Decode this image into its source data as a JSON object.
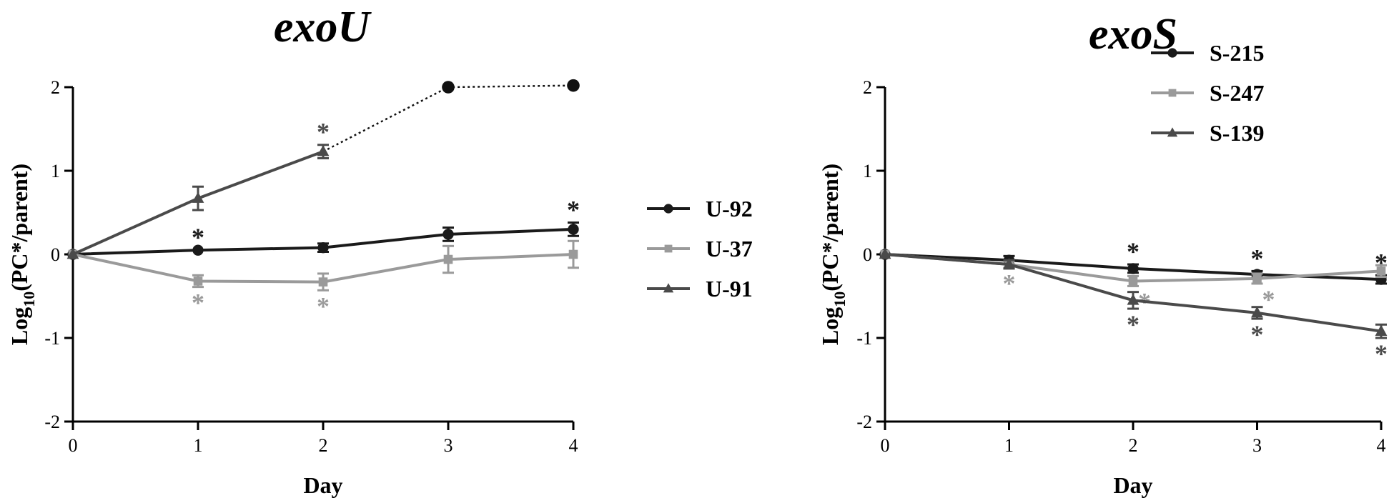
{
  "chart_data": [
    {
      "type": "line",
      "title": "exoU",
      "xlabel": "Day",
      "ylabel_base": "Log",
      "ylabel_sub": "10",
      "ylabel_rest": "(PC*/parent)",
      "x": [
        0,
        1,
        2,
        3,
        4
      ],
      "xlim": [
        0,
        4
      ],
      "ylim": [
        -2,
        2
      ],
      "xticks": [
        "0",
        "1",
        "2",
        "3",
        "4"
      ],
      "yticks": [
        "-2",
        "-1",
        "0",
        "1",
        "2"
      ],
      "legend_position": "right",
      "series": [
        {
          "name": "U-92",
          "color": "#1a1a1a",
          "marker": "circle",
          "points": [
            {
              "x": 0,
              "y": 0,
              "err": 0
            },
            {
              "x": 1,
              "y": 0.05,
              "err": 0
            },
            {
              "x": 2,
              "y": 0.08,
              "err": 0.05
            },
            {
              "x": 3,
              "y": 0.24,
              "err": 0.08
            },
            {
              "x": 4,
              "y": 0.3,
              "err": 0.08
            }
          ],
          "significant_days": [
            1,
            4
          ],
          "star_side": "above"
        },
        {
          "name": "U-37",
          "color": "#9a9a9a",
          "marker": "square",
          "points": [
            {
              "x": 0,
              "y": 0,
              "err": 0
            },
            {
              "x": 1,
              "y": -0.32,
              "err": 0.07
            },
            {
              "x": 2,
              "y": -0.33,
              "err": 0.1
            },
            {
              "x": 3,
              "y": -0.06,
              "err": 0.16
            },
            {
              "x": 4,
              "y": 0,
              "err": 0.16
            }
          ],
          "significant_days": [
            1,
            2
          ],
          "star_side": "below"
        },
        {
          "name": "U-91",
          "color": "#4a4a4a",
          "marker": "triangle",
          "points": [
            {
              "x": 0,
              "y": 0,
              "err": 0
            },
            {
              "x": 1,
              "y": 0.67,
              "err": 0.14
            },
            {
              "x": 2,
              "y": 1.23,
              "err": 0.08
            }
          ],
          "extension": {
            "color": "#111111",
            "style": "dotted",
            "marker": "circle",
            "points": [
              {
                "x": 3,
                "y": 2.0
              },
              {
                "x": 4,
                "y": 2.02
              }
            ]
          },
          "significant_days": [
            2
          ],
          "star_side": "above"
        }
      ]
    },
    {
      "type": "line",
      "title": "exoS",
      "xlabel": "Day",
      "ylabel_base": "Log",
      "ylabel_sub": "10",
      "ylabel_rest": "(PC*/parent)",
      "x": [
        0,
        1,
        2,
        3,
        4
      ],
      "xlim": [
        0,
        4
      ],
      "ylim": [
        -2,
        2
      ],
      "xticks": [
        "0",
        "1",
        "2",
        "3",
        "4"
      ],
      "yticks": [
        "-2",
        "-1",
        "0",
        "1",
        "2"
      ],
      "legend_position": "top-right",
      "series": [
        {
          "name": "S-215",
          "color": "#1a1a1a",
          "marker": "circle",
          "points": [
            {
              "x": 0,
              "y": 0,
              "err": 0
            },
            {
              "x": 1,
              "y": -0.07,
              "err": 0.05
            },
            {
              "x": 2,
              "y": -0.17,
              "err": 0.05
            },
            {
              "x": 3,
              "y": -0.24,
              "err": 0.04
            },
            {
              "x": 4,
              "y": -0.3,
              "err": 0.05
            }
          ],
          "significant_days": [
            2,
            3,
            4
          ],
          "star_side": "above"
        },
        {
          "name": "S-247",
          "color": "#9a9a9a",
          "marker": "square",
          "points": [
            {
              "x": 0,
              "y": 0,
              "err": 0
            },
            {
              "x": 1,
              "y": -0.12,
              "err": 0.04
            },
            {
              "x": 2,
              "y": -0.32,
              "err": 0.06
            },
            {
              "x": 3,
              "y": -0.29,
              "err": 0.06
            },
            {
              "x": 4,
              "y": -0.2,
              "err": 0.07
            }
          ],
          "significant_days": [
            1,
            2,
            3
          ],
          "star_side": "below"
        },
        {
          "name": "S-139",
          "color": "#4a4a4a",
          "marker": "triangle",
          "points": [
            {
              "x": 0,
              "y": 0,
              "err": 0
            },
            {
              "x": 1,
              "y": -0.12,
              "err": 0.05
            },
            {
              "x": 2,
              "y": -0.55,
              "err": 0.1
            },
            {
              "x": 3,
              "y": -0.7,
              "err": 0.07
            },
            {
              "x": 4,
              "y": -0.92,
              "err": 0.08
            }
          ],
          "significant_days": [
            2,
            3,
            4
          ],
          "star_side": "below"
        }
      ]
    }
  ],
  "significance_symbol": "*"
}
